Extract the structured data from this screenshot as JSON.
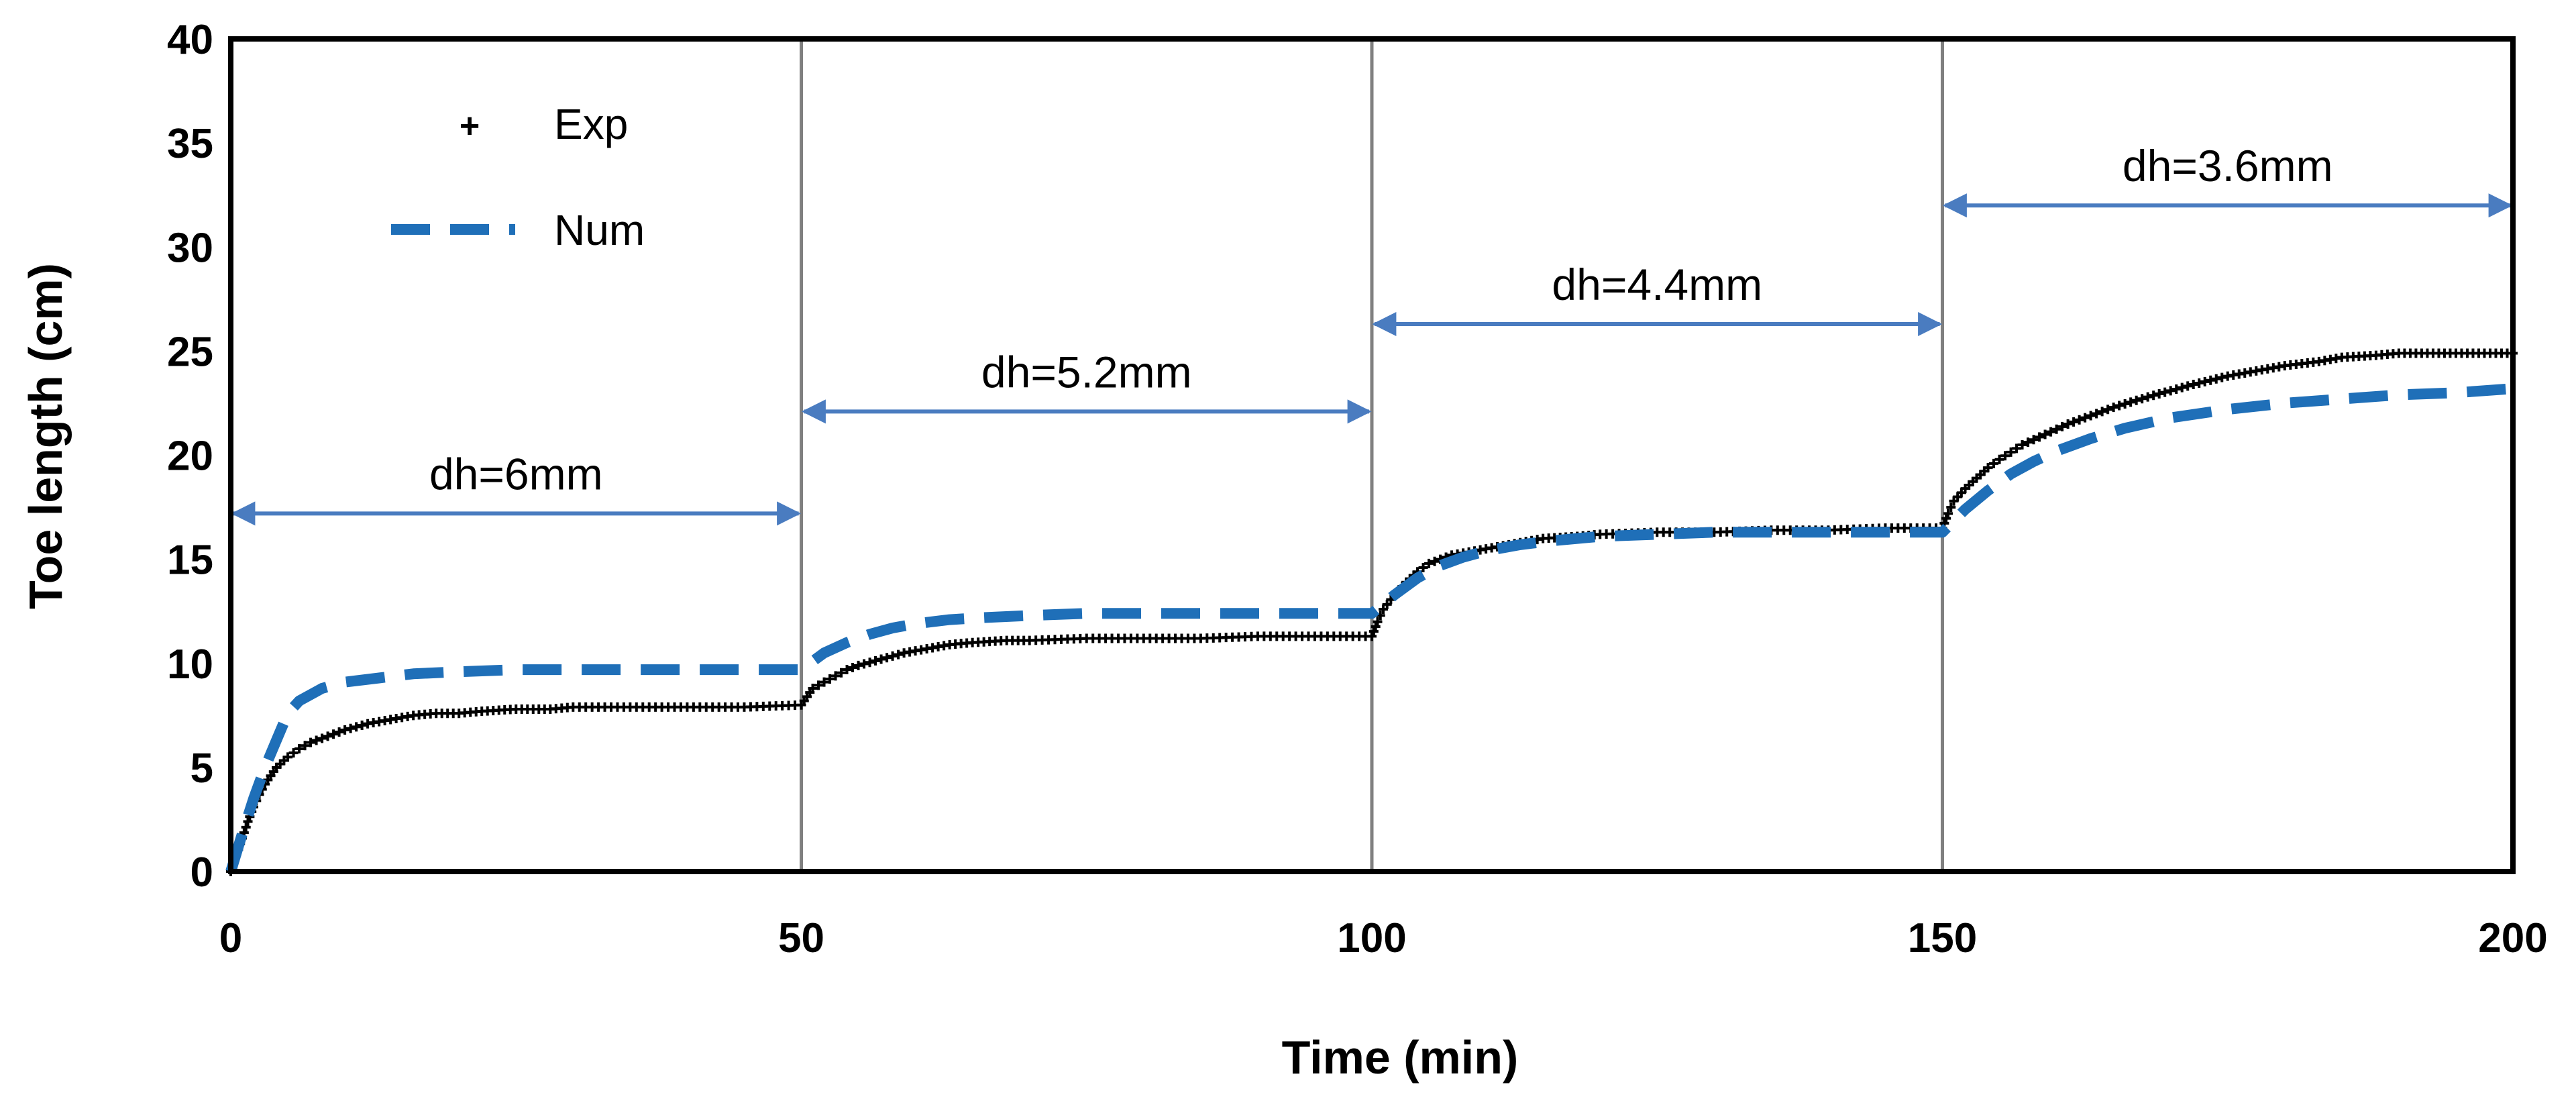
{
  "chart_data": {
    "type": "line",
    "xlabel": "Time (min)",
    "ylabel": "Toe length (cm)",
    "xlim": [
      0,
      200
    ],
    "ylim": [
      0,
      40
    ],
    "xticks": [
      "0",
      "50",
      "100",
      "150",
      "200"
    ],
    "yticks": [
      "0",
      "5",
      "10",
      "15",
      "20",
      "25",
      "30",
      "35",
      "40"
    ],
    "vertical_gridlines_at": [
      50,
      100,
      150
    ],
    "legend_position": "top-left",
    "colors": {
      "exp": "#000000",
      "num": "#1f6fb8",
      "annotation": "#4a7cc0",
      "grid": "#808080"
    },
    "series": [
      {
        "name": "Exp",
        "style": "markers",
        "x": [
          0,
          0.5,
          1,
          1.5,
          2,
          2.5,
          3,
          3.5,
          4,
          5,
          6,
          7,
          8,
          9,
          10,
          12,
          14,
          16,
          18,
          20,
          22,
          25,
          28,
          30,
          35,
          40,
          45,
          50,
          50.5,
          51,
          52,
          53,
          54,
          55,
          57,
          59,
          61,
          63,
          65,
          68,
          70,
          75,
          80,
          85,
          90,
          95,
          100,
          100.5,
          101,
          102,
          103,
          104,
          105,
          107,
          109,
          111,
          113,
          115,
          118,
          120,
          125,
          130,
          135,
          140,
          145,
          150,
          150.5,
          151,
          152,
          153,
          154,
          155,
          157,
          159,
          161,
          163,
          165,
          168,
          170,
          172,
          175,
          178,
          180,
          183,
          185,
          188,
          190,
          193,
          195,
          198,
          200
        ],
        "y": [
          0,
          0.8,
          1.6,
          2.4,
          3.1,
          3.7,
          4.2,
          4.6,
          5.0,
          5.5,
          5.9,
          6.2,
          6.4,
          6.6,
          6.8,
          7.1,
          7.3,
          7.5,
          7.6,
          7.6,
          7.7,
          7.8,
          7.8,
          7.9,
          7.9,
          7.9,
          7.9,
          8.0,
          8.4,
          8.8,
          9.1,
          9.4,
          9.7,
          9.9,
          10.2,
          10.5,
          10.7,
          10.9,
          11.0,
          11.1,
          11.1,
          11.2,
          11.2,
          11.2,
          11.3,
          11.3,
          11.3,
          12.0,
          12.6,
          13.3,
          13.9,
          14.4,
          14.8,
          15.2,
          15.4,
          15.6,
          15.8,
          16.0,
          16.1,
          16.2,
          16.3,
          16.3,
          16.4,
          16.4,
          16.5,
          16.5,
          17.2,
          17.8,
          18.4,
          18.9,
          19.4,
          19.8,
          20.5,
          21.0,
          21.5,
          21.9,
          22.3,
          22.8,
          23.1,
          23.4,
          23.8,
          24.1,
          24.3,
          24.5,
          24.7,
          24.8,
          24.9,
          24.9,
          24.9,
          24.9,
          24.9
        ]
      },
      {
        "name": "Num",
        "style": "dashed",
        "x": [
          0,
          1,
          2,
          3,
          4,
          5,
          6,
          8,
          10,
          13,
          16,
          20,
          25,
          30,
          40,
          50,
          52,
          54,
          56,
          58,
          60,
          63,
          66,
          70,
          75,
          80,
          90,
          100,
          102,
          104,
          106,
          108,
          110,
          113,
          116,
          120,
          125,
          130,
          140,
          150,
          152,
          154,
          156,
          158,
          160,
          163,
          166,
          170,
          175,
          180,
          185,
          190,
          195,
          200
        ],
        "y": [
          0,
          1.8,
          3.5,
          5.0,
          6.3,
          7.6,
          8.2,
          8.8,
          9.1,
          9.3,
          9.5,
          9.6,
          9.7,
          9.7,
          9.7,
          9.7,
          10.5,
          11.0,
          11.4,
          11.7,
          11.9,
          12.1,
          12.2,
          12.3,
          12.4,
          12.4,
          12.4,
          12.4,
          13.3,
          14.1,
          14.7,
          15.1,
          15.4,
          15.7,
          15.9,
          16.1,
          16.2,
          16.3,
          16.3,
          16.3,
          17.4,
          18.3,
          19.1,
          19.7,
          20.2,
          20.8,
          21.3,
          21.8,
          22.2,
          22.5,
          22.7,
          22.9,
          23.0,
          23.2
        ]
      }
    ],
    "annotations": [
      {
        "text": "dh=6mm",
        "x_start": 0,
        "x_end": 50,
        "y": 17.2
      },
      {
        "text": "dh=5.2mm",
        "x_start": 50,
        "x_end": 100,
        "y": 22.1
      },
      {
        "text": "dh=4.4mm",
        "x_start": 100,
        "x_end": 150,
        "y": 26.3
      },
      {
        "text": "dh=3.6mm",
        "x_start": 150,
        "x_end": 200,
        "y": 32.0
      }
    ]
  }
}
